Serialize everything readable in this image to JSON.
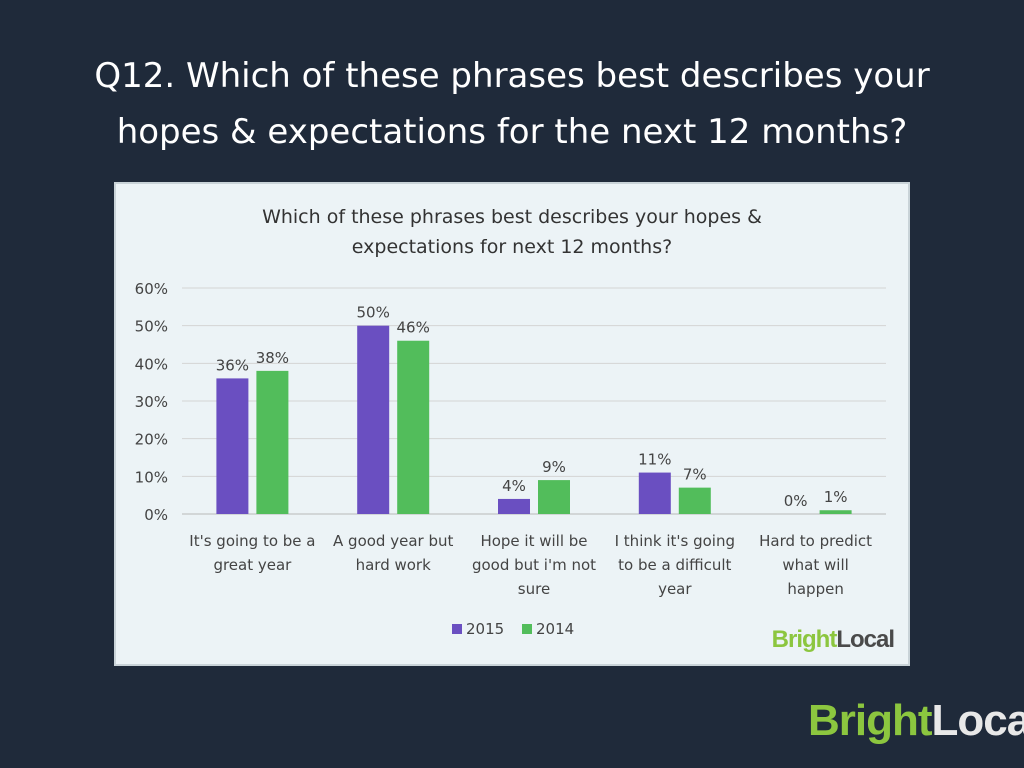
{
  "slide": {
    "title_line1": "Q12. Which of these phrases best describes your",
    "title_line2": "hopes & expectations for the next 12 months?"
  },
  "logo": {
    "bright": "Bright",
    "local": "Local"
  },
  "chart_data": {
    "type": "bar",
    "title_line1": "Which of these phrases best describes your hopes &",
    "title_line2": "expectations for next 12 months?",
    "categories": [
      [
        "It's going to be a",
        "great year"
      ],
      [
        "A good year but",
        "hard work"
      ],
      [
        "Hope it will be",
        "good but i'm not",
        "sure"
      ],
      [
        "I think it's going",
        "to be a difficult",
        "year"
      ],
      [
        "Hard to predict",
        "what will",
        "happen"
      ]
    ],
    "series": [
      {
        "name": "2015",
        "color": "#6a4fc1",
        "values": [
          36,
          50,
          4,
          11,
          0
        ],
        "labels": [
          "36%",
          "50%",
          "4%",
          "11%",
          "0%"
        ]
      },
      {
        "name": "2014",
        "color": "#52bd5b",
        "values": [
          38,
          46,
          9,
          7,
          1
        ],
        "labels": [
          "38%",
          "46%",
          "9%",
          "7%",
          "1%"
        ]
      }
    ],
    "ylim": [
      0,
      60
    ],
    "yticks": [
      "0%",
      "10%",
      "20%",
      "30%",
      "40%",
      "50%",
      "60%"
    ],
    "grid": true,
    "legend": "bottom-center"
  }
}
